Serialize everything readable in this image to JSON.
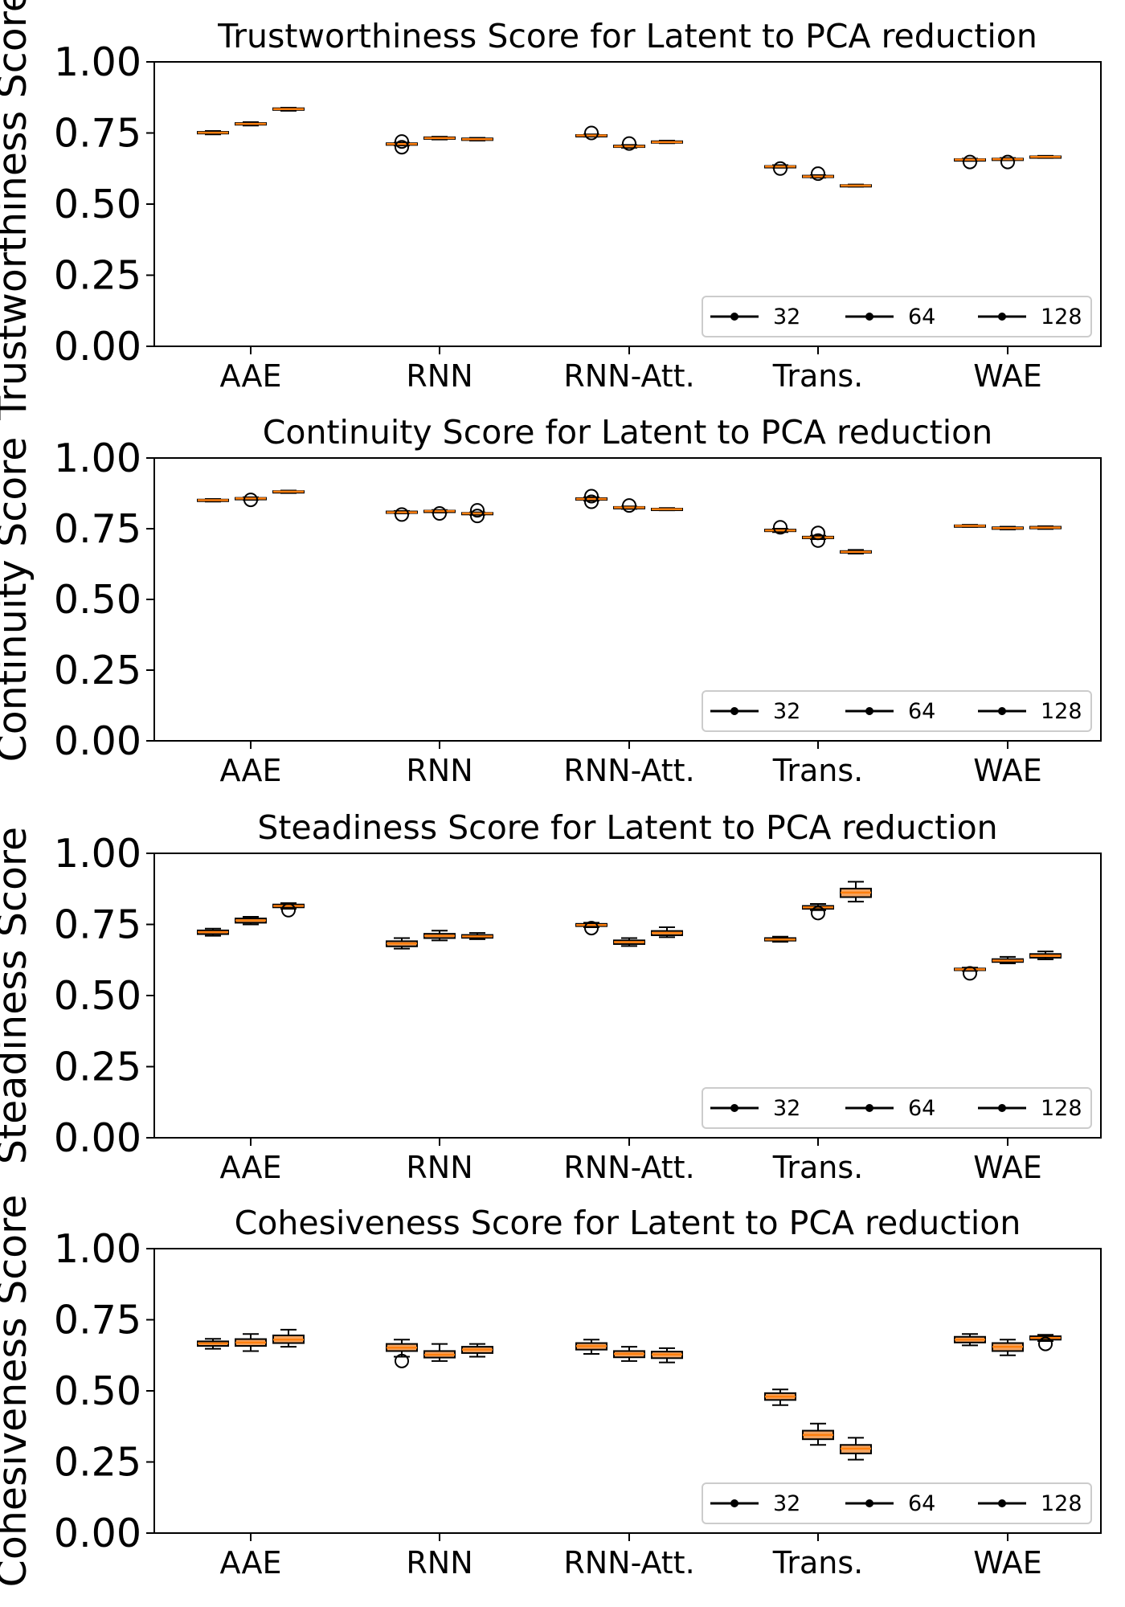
{
  "chart_data": [
    {
      "type": "box",
      "title": "Trustworthiness Score for Latent to PCA reduction",
      "ylabel": "Trustworthiness Score",
      "ylim": [
        0,
        1
      ],
      "yticks": [
        "0.00",
        "0.25",
        "0.50",
        "0.75",
        "1.00"
      ],
      "categories": [
        "AAE",
        "RNN",
        "RNN-Att.",
        "Trans.",
        "WAE"
      ],
      "legend": {
        "placement": "lower-right",
        "entries": [
          "32",
          "64",
          "128"
        ]
      },
      "series": [
        {
          "name": "32",
          "boxes": [
            {
              "min": 0.745,
              "q1": 0.748,
              "median": 0.751,
              "q3": 0.754,
              "max": 0.757,
              "outliers": []
            },
            {
              "min": 0.706,
              "q1": 0.708,
              "median": 0.711,
              "q3": 0.714,
              "max": 0.716,
              "outliers": [
                0.72,
                0.7
              ]
            },
            {
              "min": 0.737,
              "q1": 0.739,
              "median": 0.741,
              "q3": 0.743,
              "max": 0.745,
              "outliers": [
                0.75
              ]
            },
            {
              "min": 0.628,
              "q1": 0.63,
              "median": 0.632,
              "q3": 0.634,
              "max": 0.637,
              "outliers": [
                0.625
              ]
            },
            {
              "min": 0.652,
              "q1": 0.654,
              "median": 0.656,
              "q3": 0.658,
              "max": 0.66,
              "outliers": [
                0.648
              ]
            }
          ]
        },
        {
          "name": "64",
          "boxes": [
            {
              "min": 0.776,
              "q1": 0.779,
              "median": 0.782,
              "q3": 0.785,
              "max": 0.788,
              "outliers": []
            },
            {
              "min": 0.727,
              "q1": 0.729,
              "median": 0.732,
              "q3": 0.735,
              "max": 0.737,
              "outliers": []
            },
            {
              "min": 0.698,
              "q1": 0.701,
              "median": 0.703,
              "q3": 0.706,
              "max": 0.708,
              "outliers": [
                0.713
              ]
            },
            {
              "min": 0.593,
              "q1": 0.595,
              "median": 0.597,
              "q3": 0.6,
              "max": 0.602,
              "outliers": [
                0.607
              ]
            },
            {
              "min": 0.654,
              "q1": 0.656,
              "median": 0.658,
              "q3": 0.66,
              "max": 0.662,
              "outliers": [
                0.648
              ]
            }
          ]
        },
        {
          "name": "128",
          "boxes": [
            {
              "min": 0.828,
              "q1": 0.831,
              "median": 0.834,
              "q3": 0.837,
              "max": 0.839,
              "outliers": []
            },
            {
              "min": 0.723,
              "q1": 0.725,
              "median": 0.728,
              "q3": 0.731,
              "max": 0.733,
              "outliers": []
            },
            {
              "min": 0.714,
              "q1": 0.716,
              "median": 0.718,
              "q3": 0.721,
              "max": 0.723,
              "outliers": []
            },
            {
              "min": 0.561,
              "q1": 0.563,
              "median": 0.565,
              "q3": 0.567,
              "max": 0.569,
              "outliers": []
            },
            {
              "min": 0.662,
              "q1": 0.664,
              "median": 0.666,
              "q3": 0.668,
              "max": 0.67,
              "outliers": []
            }
          ]
        }
      ]
    },
    {
      "type": "box",
      "title": "Continuity Score for Latent to PCA reduction",
      "ylabel": "Continuity Score",
      "ylim": [
        0,
        1
      ],
      "yticks": [
        "0.00",
        "0.25",
        "0.50",
        "0.75",
        "1.00"
      ],
      "categories": [
        "AAE",
        "RNN",
        "RNN-Att.",
        "Trans.",
        "WAE"
      ],
      "legend": {
        "placement": "lower-right",
        "entries": [
          "32",
          "64",
          "128"
        ]
      },
      "series": [
        {
          "name": "32",
          "boxes": [
            {
              "min": 0.846,
              "q1": 0.849,
              "median": 0.851,
              "q3": 0.853,
              "max": 0.855,
              "outliers": []
            },
            {
              "min": 0.804,
              "q1": 0.806,
              "median": 0.808,
              "q3": 0.811,
              "max": 0.813,
              "outliers": [
                0.8
              ]
            },
            {
              "min": 0.849,
              "q1": 0.852,
              "median": 0.855,
              "q3": 0.858,
              "max": 0.861,
              "outliers": [
                0.865,
                0.845
              ]
            },
            {
              "min": 0.738,
              "q1": 0.741,
              "median": 0.744,
              "q3": 0.747,
              "max": 0.75,
              "outliers": [
                0.755
              ]
            },
            {
              "min": 0.756,
              "q1": 0.758,
              "median": 0.76,
              "q3": 0.762,
              "max": 0.764,
              "outliers": []
            }
          ]
        },
        {
          "name": "64",
          "boxes": [
            {
              "min": 0.852,
              "q1": 0.854,
              "median": 0.857,
              "q3": 0.859,
              "max": 0.861,
              "outliers": [
                0.852
              ]
            },
            {
              "min": 0.807,
              "q1": 0.809,
              "median": 0.812,
              "q3": 0.814,
              "max": 0.816,
              "outliers": [
                0.804
              ]
            },
            {
              "min": 0.82,
              "q1": 0.822,
              "median": 0.825,
              "q3": 0.827,
              "max": 0.829,
              "outliers": [
                0.832
              ]
            },
            {
              "min": 0.713,
              "q1": 0.716,
              "median": 0.719,
              "q3": 0.722,
              "max": 0.725,
              "outliers": [
                0.735,
                0.708
              ]
            },
            {
              "min": 0.747,
              "q1": 0.749,
              "median": 0.752,
              "q3": 0.755,
              "max": 0.757,
              "outliers": []
            }
          ]
        },
        {
          "name": "128",
          "boxes": [
            {
              "min": 0.876,
              "q1": 0.878,
              "median": 0.881,
              "q3": 0.883,
              "max": 0.885,
              "outliers": []
            },
            {
              "min": 0.799,
              "q1": 0.801,
              "median": 0.804,
              "q3": 0.806,
              "max": 0.808,
              "outliers": [
                0.815,
                0.795
              ]
            },
            {
              "min": 0.815,
              "q1": 0.817,
              "median": 0.819,
              "q3": 0.821,
              "max": 0.823,
              "outliers": []
            },
            {
              "min": 0.662,
              "q1": 0.665,
              "median": 0.668,
              "q3": 0.671,
              "max": 0.675,
              "outliers": []
            },
            {
              "min": 0.749,
              "q1": 0.751,
              "median": 0.754,
              "q3": 0.757,
              "max": 0.759,
              "outliers": []
            }
          ]
        }
      ]
    },
    {
      "type": "box",
      "title": "Steadiness Score for Latent to PCA reduction",
      "ylabel": "Steadiness Score",
      "ylim": [
        0,
        1
      ],
      "yticks": [
        "0.00",
        "0.25",
        "0.50",
        "0.75",
        "1.00"
      ],
      "categories": [
        "AAE",
        "RNN",
        "RNN-Att.",
        "Trans.",
        "WAE"
      ],
      "legend": {
        "placement": "lower-right",
        "entries": [
          "32",
          "64",
          "128"
        ]
      },
      "series": [
        {
          "name": "32",
          "boxes": [
            {
              "min": 0.71,
              "q1": 0.716,
              "median": 0.723,
              "q3": 0.729,
              "max": 0.735,
              "outliers": []
            },
            {
              "min": 0.665,
              "q1": 0.673,
              "median": 0.683,
              "q3": 0.691,
              "max": 0.702,
              "outliers": []
            },
            {
              "min": 0.74,
              "q1": 0.744,
              "median": 0.748,
              "q3": 0.752,
              "max": 0.756,
              "outliers": [
                0.737
              ]
            },
            {
              "min": 0.689,
              "q1": 0.693,
              "median": 0.697,
              "q3": 0.702,
              "max": 0.707,
              "outliers": []
            },
            {
              "min": 0.587,
              "q1": 0.589,
              "median": 0.592,
              "q3": 0.595,
              "max": 0.598,
              "outliers": [
                0.578
              ]
            }
          ]
        },
        {
          "name": "64",
          "boxes": [
            {
              "min": 0.75,
              "q1": 0.756,
              "median": 0.764,
              "q3": 0.771,
              "max": 0.777,
              "outliers": []
            },
            {
              "min": 0.694,
              "q1": 0.702,
              "median": 0.71,
              "q3": 0.717,
              "max": 0.728,
              "outliers": []
            },
            {
              "min": 0.674,
              "q1": 0.681,
              "median": 0.688,
              "q3": 0.694,
              "max": 0.702,
              "outliers": []
            },
            {
              "min": 0.8,
              "q1": 0.805,
              "median": 0.81,
              "q3": 0.815,
              "max": 0.822,
              "outliers": [
                0.79
              ]
            },
            {
              "min": 0.613,
              "q1": 0.618,
              "median": 0.623,
              "q3": 0.628,
              "max": 0.636,
              "outliers": []
            }
          ]
        },
        {
          "name": "128",
          "boxes": [
            {
              "min": 0.805,
              "q1": 0.81,
              "median": 0.815,
              "q3": 0.82,
              "max": 0.825,
              "outliers": [
                0.8
              ]
            },
            {
              "min": 0.698,
              "q1": 0.703,
              "median": 0.708,
              "q3": 0.713,
              "max": 0.72,
              "outliers": []
            },
            {
              "min": 0.705,
              "q1": 0.712,
              "median": 0.72,
              "q3": 0.727,
              "max": 0.74,
              "outliers": []
            },
            {
              "min": 0.83,
              "q1": 0.846,
              "median": 0.862,
              "q3": 0.876,
              "max": 0.9,
              "outliers": []
            },
            {
              "min": 0.627,
              "q1": 0.633,
              "median": 0.64,
              "q3": 0.646,
              "max": 0.655,
              "outliers": []
            }
          ]
        }
      ]
    },
    {
      "type": "box",
      "title": "Cohesiveness Score for Latent to PCA reduction",
      "ylabel": "Cohesiveness Score",
      "ylim": [
        0,
        1
      ],
      "yticks": [
        "0.00",
        "0.25",
        "0.50",
        "0.75",
        "1.00"
      ],
      "categories": [
        "AAE",
        "RNN",
        "RNN-Att.",
        "Trans.",
        "WAE"
      ],
      "legend": {
        "placement": "lower-right",
        "entries": [
          "32",
          "64",
          "128"
        ]
      },
      "series": [
        {
          "name": "32",
          "boxes": [
            {
              "min": 0.648,
              "q1": 0.658,
              "median": 0.667,
              "q3": 0.674,
              "max": 0.683,
              "outliers": []
            },
            {
              "min": 0.62,
              "q1": 0.64,
              "median": 0.652,
              "q3": 0.665,
              "max": 0.68,
              "outliers": [
                0.605
              ]
            },
            {
              "min": 0.63,
              "q1": 0.645,
              "median": 0.657,
              "q3": 0.668,
              "max": 0.68,
              "outliers": []
            },
            {
              "min": 0.45,
              "q1": 0.468,
              "median": 0.48,
              "q3": 0.492,
              "max": 0.505,
              "outliers": []
            },
            {
              "min": 0.66,
              "q1": 0.67,
              "median": 0.68,
              "q3": 0.69,
              "max": 0.7,
              "outliers": []
            }
          ]
        },
        {
          "name": "64",
          "boxes": [
            {
              "min": 0.64,
              "q1": 0.658,
              "median": 0.67,
              "q3": 0.682,
              "max": 0.7,
              "outliers": []
            },
            {
              "min": 0.605,
              "q1": 0.617,
              "median": 0.627,
              "q3": 0.64,
              "max": 0.665,
              "outliers": []
            },
            {
              "min": 0.605,
              "q1": 0.618,
              "median": 0.63,
              "q3": 0.64,
              "max": 0.655,
              "outliers": []
            },
            {
              "min": 0.31,
              "q1": 0.33,
              "median": 0.345,
              "q3": 0.36,
              "max": 0.385,
              "outliers": []
            },
            {
              "min": 0.625,
              "q1": 0.64,
              "median": 0.655,
              "q3": 0.668,
              "max": 0.68,
              "outliers": []
            }
          ]
        },
        {
          "name": "128",
          "boxes": [
            {
              "min": 0.655,
              "q1": 0.668,
              "median": 0.68,
              "q3": 0.695,
              "max": 0.715,
              "outliers": []
            },
            {
              "min": 0.62,
              "q1": 0.633,
              "median": 0.645,
              "q3": 0.655,
              "max": 0.665,
              "outliers": []
            },
            {
              "min": 0.6,
              "q1": 0.615,
              "median": 0.628,
              "q3": 0.638,
              "max": 0.65,
              "outliers": []
            },
            {
              "min": 0.258,
              "q1": 0.28,
              "median": 0.297,
              "q3": 0.31,
              "max": 0.335,
              "outliers": []
            },
            {
              "min": 0.675,
              "q1": 0.68,
              "median": 0.686,
              "q3": 0.692,
              "max": 0.697,
              "outliers": [
                0.665
              ]
            }
          ]
        }
      ]
    }
  ],
  "colors": {
    "box_fill": "#f4a460",
    "median_line": "#ff7f0e",
    "box_edge": "#000000",
    "axes": "#000000",
    "background": "#ffffff"
  }
}
